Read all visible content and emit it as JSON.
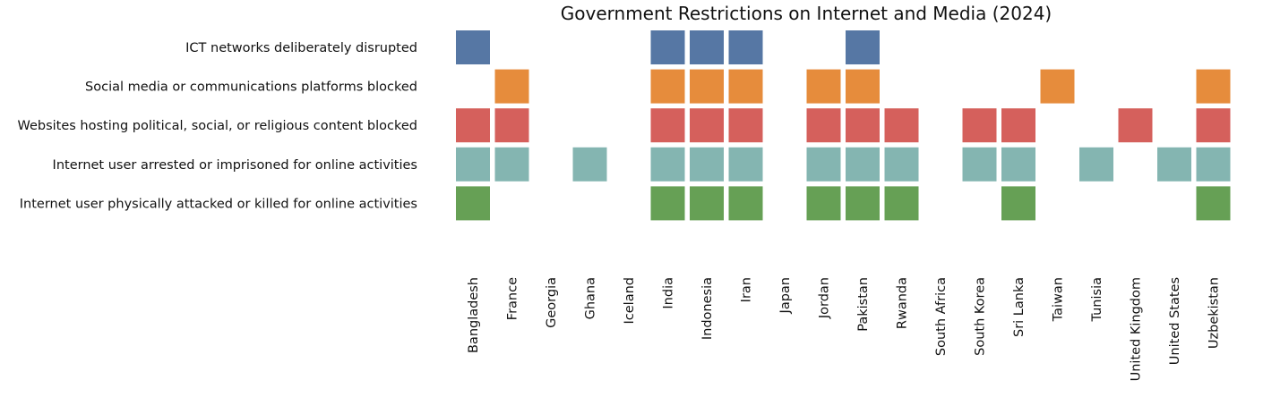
{
  "chart_data": {
    "type": "heatmap",
    "title": "Government Restrictions on Internet and Media (2024)",
    "xlabel": "",
    "ylabel": "",
    "grid": false,
    "legend": "none",
    "columns": [
      "Bangladesh",
      "France",
      "Georgia",
      "Ghana",
      "Iceland",
      "India",
      "Indonesia",
      "Iran",
      "Japan",
      "Jordan",
      "Pakistan",
      "Rwanda",
      "South Africa",
      "South Korea",
      "Sri Lanka",
      "Taiwan",
      "Tunisia",
      "United Kingdom",
      "United States",
      "Uzbekistan"
    ],
    "rows": [
      {
        "label": "ICT networks deliberately disrupted",
        "color": "#5677a4",
        "values": [
          1,
          0,
          0,
          0,
          0,
          1,
          1,
          1,
          0,
          0,
          1,
          0,
          0,
          0,
          0,
          0,
          0,
          0,
          0,
          0
        ]
      },
      {
        "label": "Social media or communications platforms blocked",
        "color": "#e68c3c",
        "values": [
          0,
          1,
          0,
          0,
          0,
          1,
          1,
          1,
          0,
          1,
          1,
          0,
          0,
          0,
          0,
          1,
          0,
          0,
          0,
          1
        ]
      },
      {
        "label": "Websites hosting political, social, or religious content blocked",
        "color": "#d5605c",
        "values": [
          1,
          1,
          0,
          0,
          0,
          1,
          1,
          1,
          0,
          1,
          1,
          1,
          0,
          1,
          1,
          0,
          0,
          1,
          0,
          1
        ]
      },
      {
        "label": "Internet user arrested or imprisoned for online activities",
        "color": "#84b5b1",
        "values": [
          1,
          1,
          0,
          1,
          0,
          1,
          1,
          1,
          0,
          1,
          1,
          1,
          0,
          1,
          1,
          0,
          1,
          0,
          1,
          1
        ]
      },
      {
        "label": "Internet user physically attacked or killed for online activities",
        "color": "#66a055",
        "values": [
          1,
          0,
          0,
          0,
          0,
          1,
          1,
          1,
          0,
          1,
          1,
          1,
          0,
          0,
          1,
          0,
          0,
          0,
          0,
          1
        ]
      }
    ]
  }
}
